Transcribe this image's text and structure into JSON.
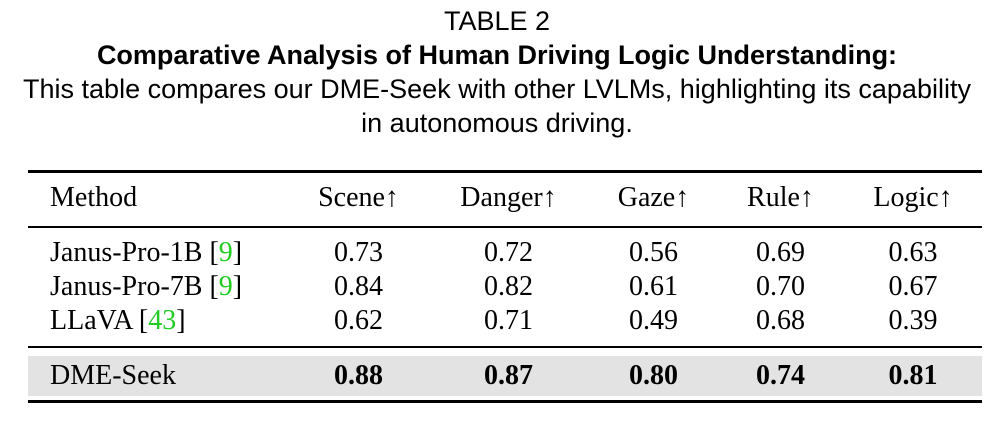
{
  "caption": {
    "label": "TABLE 2",
    "title": "Comparative Analysis of Human Driving Logic Understanding:",
    "description": "This table compares our DME-Seek with other LVLMs, highlighting its capability in autonomous driving."
  },
  "table": {
    "headers": [
      "Method",
      "Scene↑",
      "Danger↑",
      "Gaze↑",
      "Rule↑",
      "Logic↑"
    ],
    "rows": [
      {
        "method": "Janus-Pro-1B",
        "cite": "9",
        "values": [
          "0.73",
          "0.72",
          "0.56",
          "0.69",
          "0.63"
        ]
      },
      {
        "method": "Janus-Pro-7B",
        "cite": "9",
        "values": [
          "0.84",
          "0.82",
          "0.61",
          "0.70",
          "0.67"
        ]
      },
      {
        "method": "LLaVA",
        "cite": "43",
        "values": [
          "0.62",
          "0.71",
          "0.49",
          "0.68",
          "0.39"
        ]
      }
    ],
    "highlight_row": {
      "method": "DME-Seek",
      "values": [
        "0.88",
        "0.87",
        "0.80",
        "0.74",
        "0.81"
      ]
    },
    "citation_color": "#22cc22",
    "highlight_background": "#e3e3e3"
  }
}
